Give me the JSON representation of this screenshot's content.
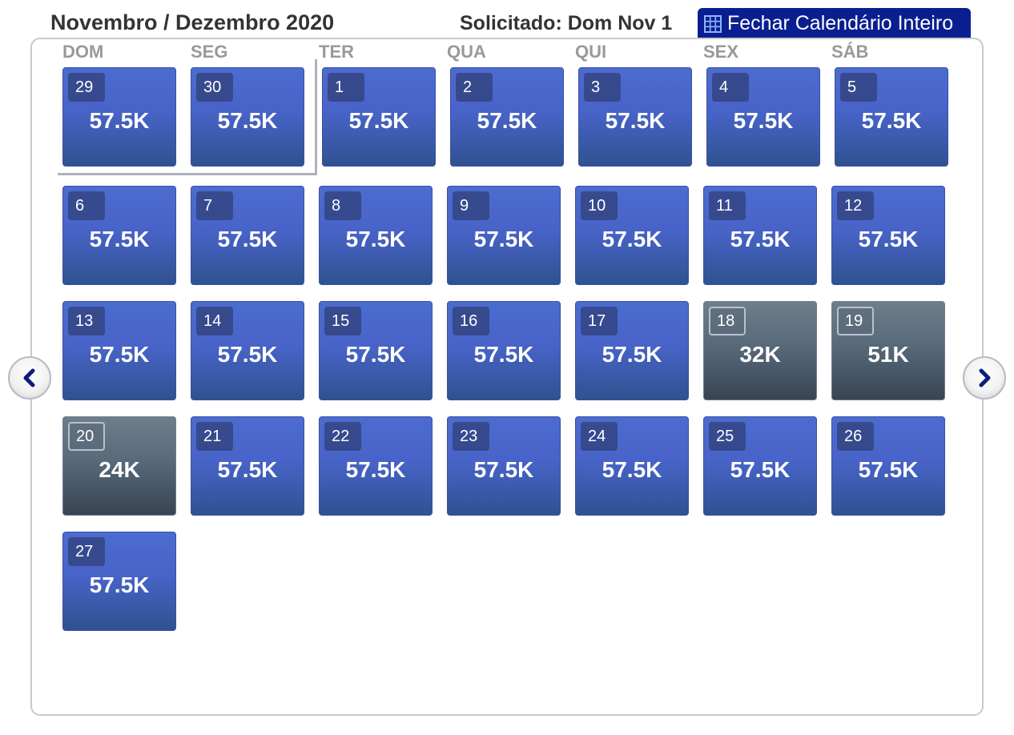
{
  "header": {
    "title": "Novembro / Dezembro 2020",
    "requested": "Solicitado: Dom Nov 1",
    "close_button": "Fechar Calendário Inteiro"
  },
  "weekdays": [
    "DOM",
    "SEG",
    "TER",
    "QUA",
    "QUI",
    "SEX",
    "SÁB"
  ],
  "colors": {
    "header_button": "#0a1f8f",
    "day_primary": "#4863c8",
    "day_alt": "#58697a"
  },
  "days": [
    {
      "day": "29",
      "price": "57.5K",
      "style": "primary"
    },
    {
      "day": "30",
      "price": "57.5K",
      "style": "primary"
    },
    {
      "day": "1",
      "price": "57.5K",
      "style": "primary"
    },
    {
      "day": "2",
      "price": "57.5K",
      "style": "primary"
    },
    {
      "day": "3",
      "price": "57.5K",
      "style": "primary"
    },
    {
      "day": "4",
      "price": "57.5K",
      "style": "primary"
    },
    {
      "day": "5",
      "price": "57.5K",
      "style": "primary"
    },
    {
      "day": "6",
      "price": "57.5K",
      "style": "primary"
    },
    {
      "day": "7",
      "price": "57.5K",
      "style": "primary"
    },
    {
      "day": "8",
      "price": "57.5K",
      "style": "primary"
    },
    {
      "day": "9",
      "price": "57.5K",
      "style": "primary"
    },
    {
      "day": "10",
      "price": "57.5K",
      "style": "primary"
    },
    {
      "day": "11",
      "price": "57.5K",
      "style": "primary"
    },
    {
      "day": "12",
      "price": "57.5K",
      "style": "primary"
    },
    {
      "day": "13",
      "price": "57.5K",
      "style": "primary"
    },
    {
      "day": "14",
      "price": "57.5K",
      "style": "primary"
    },
    {
      "day": "15",
      "price": "57.5K",
      "style": "primary"
    },
    {
      "day": "16",
      "price": "57.5K",
      "style": "primary"
    },
    {
      "day": "17",
      "price": "57.5K",
      "style": "primary"
    },
    {
      "day": "18",
      "price": "32K",
      "style": "alt"
    },
    {
      "day": "19",
      "price": "51K",
      "style": "alt"
    },
    {
      "day": "20",
      "price": "24K",
      "style": "alt"
    },
    {
      "day": "21",
      "price": "57.5K",
      "style": "primary"
    },
    {
      "day": "22",
      "price": "57.5K",
      "style": "primary"
    },
    {
      "day": "23",
      "price": "57.5K",
      "style": "primary"
    },
    {
      "day": "24",
      "price": "57.5K",
      "style": "primary"
    },
    {
      "day": "25",
      "price": "57.5K",
      "style": "primary"
    },
    {
      "day": "26",
      "price": "57.5K",
      "style": "primary"
    },
    {
      "day": "27",
      "price": "57.5K",
      "style": "primary"
    }
  ],
  "navigation": {
    "prev_icon": "chevron-left-icon",
    "next_icon": "chevron-right-icon",
    "calendar_icon": "calendar-grid-icon"
  }
}
